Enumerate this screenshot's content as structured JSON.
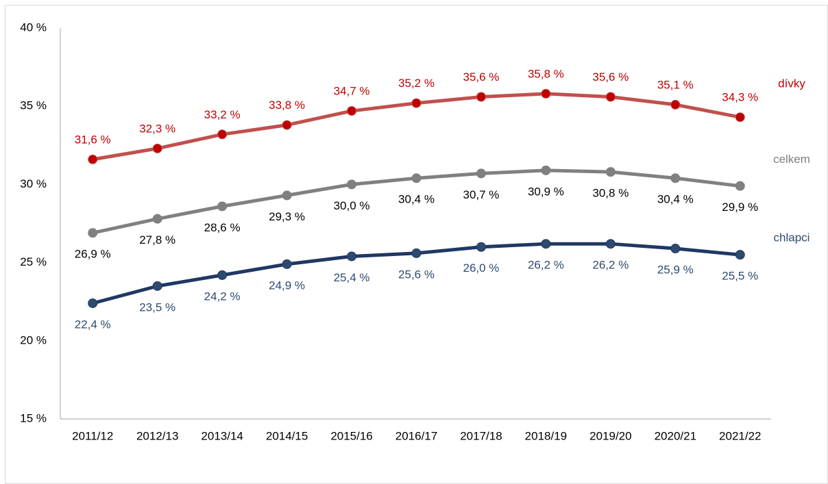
{
  "chart_data": {
    "type": "line",
    "categories": [
      "2011/12",
      "2012/13",
      "2013/14",
      "2014/15",
      "2015/16",
      "2016/17",
      "2017/18",
      "2018/19",
      "2019/20",
      "2020/21",
      "2021/22"
    ],
    "series": [
      {
        "name": "dívky",
        "color": "#c0504d",
        "marker_color": "#c00000",
        "label_color": "#c00000",
        "values": [
          31.6,
          32.3,
          33.2,
          33.8,
          34.7,
          35.2,
          35.6,
          35.8,
          35.6,
          35.1,
          34.3
        ],
        "value_labels": [
          "31,6 %",
          "32,3 %",
          "33,2 %",
          "33,8 %",
          "34,7 %",
          "35,2 %",
          "35,6 %",
          "35,8 %",
          "35,6 %",
          "35,1 %",
          "34,3 %"
        ]
      },
      {
        "name": "celkem",
        "color": "#808080",
        "marker_color": "#808080",
        "label_color": "#000000",
        "values": [
          26.9,
          27.8,
          28.6,
          29.3,
          30.0,
          30.4,
          30.7,
          30.9,
          30.8,
          30.4,
          29.9
        ],
        "value_labels": [
          "26,9 %",
          "27,8 %",
          "28,6 %",
          "29,3 %",
          "30,0 %",
          "30,4 %",
          "30,7 %",
          "30,9 %",
          "30,8 %",
          "30,4 %",
          "29,9 %"
        ]
      },
      {
        "name": "chlapci",
        "color": "#1f3864",
        "marker_color": "#2e4a6e",
        "label_color": "#2e4a6e",
        "values": [
          22.4,
          23.5,
          24.2,
          24.9,
          25.4,
          25.6,
          26.0,
          26.2,
          26.2,
          25.9,
          25.5
        ],
        "value_labels": [
          "22,4 %",
          "23,5 %",
          "24,2 %",
          "24,9 %",
          "25,4 %",
          "25,6 %",
          "26,0 %",
          "26,2 %",
          "26,2 %",
          "25,9 %",
          "25,5 %"
        ]
      }
    ],
    "ylim": [
      15,
      40
    ],
    "yticks": [
      {
        "value": 15,
        "label": "15 %"
      },
      {
        "value": 20,
        "label": "20 %"
      },
      {
        "value": 25,
        "label": "25 %"
      },
      {
        "value": 30,
        "label": "30 %"
      },
      {
        "value": 35,
        "label": "35 %"
      },
      {
        "value": 40,
        "label": "40 %"
      }
    ],
    "grid": false
  }
}
